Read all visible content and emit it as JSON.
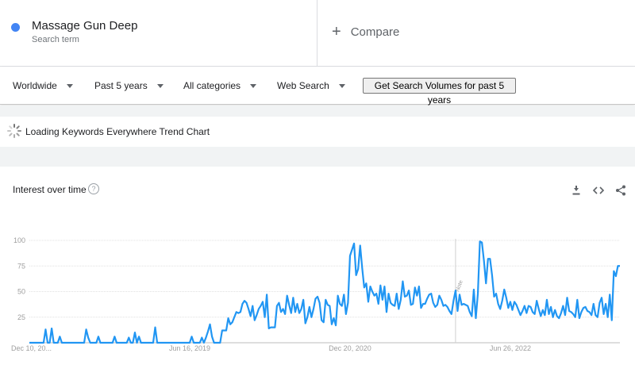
{
  "search_term": {
    "name": "Massage Gun Deep",
    "type": "Search term",
    "dot_color": "#4285f4"
  },
  "compare": {
    "label": "Compare"
  },
  "filters": {
    "region": "Worldwide",
    "period": "Past 5 years",
    "category": "All categories",
    "property": "Web Search"
  },
  "extension_button": "Get Search Volumes for past 5 years",
  "loading_text": "Loading Keywords Everywhere Trend Chart",
  "card": {
    "title": "Interest over time",
    "help": "?"
  },
  "colors": {
    "line": "#2196f3",
    "grid": "#e0e0e0",
    "axis_text": "#9e9e9e",
    "band": "#f1f3f4"
  },
  "icons": {
    "download": "download-icon",
    "embed": "embed-icon",
    "share": "share-icon",
    "loading": "spinner-icon"
  },
  "annotation_label": "Note",
  "chart_data": {
    "type": "line",
    "title": "",
    "xlabel": "",
    "ylabel": "",
    "y_ticks": [
      25,
      50,
      75,
      100
    ],
    "ylim": [
      0,
      100
    ],
    "x_tick_labels": [
      "Dec 10, 20...",
      "Jun 16, 2019",
      "Dec 20, 2020",
      "Jun 26, 2022"
    ],
    "x_tick_weeks": [
      0,
      79,
      158,
      237
    ],
    "annotation_week": 210,
    "grid": true,
    "series": [
      {
        "name": "",
        "values": [
          0,
          0,
          0,
          0,
          0,
          0,
          0,
          0,
          13,
          0,
          0,
          14,
          0,
          0,
          0,
          6,
          0,
          0,
          0,
          0,
          0,
          0,
          0,
          0,
          0,
          0,
          0,
          0,
          13,
          5,
          0,
          0,
          0,
          0,
          6,
          0,
          0,
          0,
          0,
          0,
          0,
          0,
          6,
          0,
          0,
          0,
          0,
          0,
          0,
          5,
          0,
          0,
          10,
          0,
          6,
          0,
          0,
          0,
          0,
          0,
          0,
          0,
          15,
          0,
          0,
          0,
          0,
          0,
          0,
          0,
          0,
          0,
          0,
          0,
          0,
          0,
          0,
          0,
          0,
          0,
          6,
          0,
          0,
          0,
          0,
          5,
          0,
          5,
          11,
          18,
          6,
          0,
          0,
          0,
          0,
          12,
          12,
          12,
          24,
          18,
          20,
          25,
          30,
          29,
          30,
          38,
          41,
          39,
          33,
          26,
          36,
          22,
          27,
          33,
          36,
          40,
          25,
          47,
          14,
          15,
          15,
          15,
          36,
          39,
          30,
          33,
          28,
          46,
          37,
          29,
          44,
          30,
          38,
          29,
          33,
          42,
          19,
          25,
          35,
          25,
          33,
          43,
          45,
          39,
          22,
          20,
          42,
          37,
          36,
          18,
          24,
          17,
          46,
          38,
          36,
          47,
          28,
          39,
          85,
          91,
          97,
          66,
          72,
          95,
          73,
          54,
          58,
          40,
          55,
          50,
          46,
          48,
          38,
          56,
          42,
          55,
          30,
          48,
          39,
          37,
          36,
          48,
          33,
          42,
          60,
          45,
          46,
          51,
          37,
          38,
          54,
          46,
          55,
          34,
          38,
          38,
          43,
          47,
          48,
          39,
          35,
          37,
          46,
          42,
          36,
          37,
          35,
          31,
          28,
          41,
          51,
          31,
          47,
          37,
          38,
          37,
          36,
          30,
          26,
          52,
          24,
          48,
          99,
          98,
          80,
          58,
          82,
          82,
          66,
          45,
          48,
          38,
          33,
          41,
          52,
          44,
          34,
          40,
          32,
          40,
          37,
          32,
          27,
          31,
          36,
          29,
          36,
          35,
          30,
          28,
          41,
          33,
          26,
          32,
          27,
          42,
          28,
          35,
          25,
          32,
          26,
          24,
          29,
          36,
          27,
          44,
          31,
          30,
          28,
          25,
          42,
          24,
          30,
          34,
          35,
          31,
          30,
          27,
          38,
          27,
          25,
          39,
          44,
          28,
          38,
          25,
          47,
          22,
          70,
          65,
          75,
          75
        ]
      }
    ]
  }
}
